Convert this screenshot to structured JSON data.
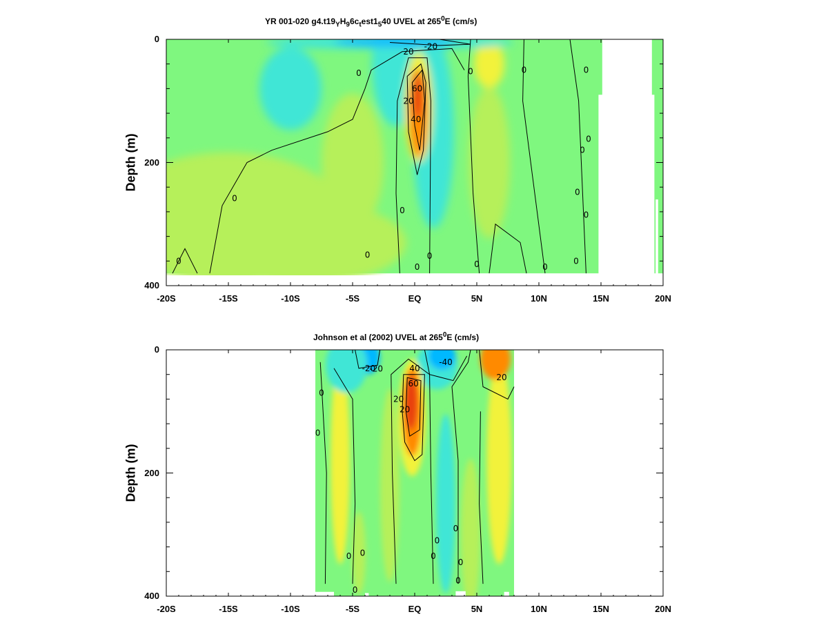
{
  "chart_data": [
    {
      "type": "heatmap",
      "title_parts": {
        "a": "YR 001-020 g4.t19",
        "s1": "Y",
        "b": "H",
        "s2": "9",
        "c": "6c",
        "s3": "t",
        "d": "est1",
        "s4": "5",
        "e": "40 UVEL at 265",
        "sup": "0",
        "f": "E (cm/s)"
      },
      "xlabel": "",
      "ylabel": "Depth (m)",
      "x_range": [
        -20,
        20
      ],
      "y_range": [
        400,
        0
      ],
      "x_ticks": [
        "-20S",
        "-15S",
        "-10S",
        "-5S",
        "EQ",
        "5N",
        "10N",
        "15N",
        "20N"
      ],
      "y_ticks": [
        "0",
        "200",
        "400"
      ],
      "contour_labels": [
        "-20",
        "20",
        "20",
        "60",
        "40",
        "0",
        "0",
        "0",
        "0",
        "0",
        "0",
        "0",
        "0",
        "0",
        "0",
        "0",
        "0",
        "0",
        "0",
        "0",
        "0",
        "0"
      ],
      "data_extent": {
        "x": [
          -20,
          20
        ],
        "depth_max": 380
      }
    },
    {
      "type": "heatmap",
      "title_parts": {
        "a": "Johnson et al (2002) UVEL at 265",
        "sup": "0",
        "f": "E (cm/s)"
      },
      "xlabel": "",
      "ylabel": "Depth (m)",
      "x_range": [
        -20,
        20
      ],
      "y_range": [
        400,
        0
      ],
      "x_ticks": [
        "-20S",
        "-15S",
        "-10S",
        "-5S",
        "EQ",
        "5N",
        "10N",
        "15N",
        "20N"
      ],
      "y_ticks": [
        "0",
        "200",
        "400"
      ],
      "contour_labels": [
        "-20",
        "-40",
        "-20",
        "40",
        "60",
        "20",
        "20",
        "20",
        "0",
        "0",
        "0",
        "0",
        "0",
        "0",
        "0",
        "0",
        "0",
        "0"
      ],
      "data_extent": {
        "x": [
          -8,
          8
        ],
        "depth_max": 400
      }
    }
  ],
  "colors": {
    "background": "#7ff77f",
    "strong_west": "#00b8ff",
    "west": "#3fe6d6",
    "weak_east": "#b6f05a",
    "east": "#f2f23a",
    "strong_east": "#ff8a00",
    "core": "#e8400a",
    "contour": "#000000"
  }
}
